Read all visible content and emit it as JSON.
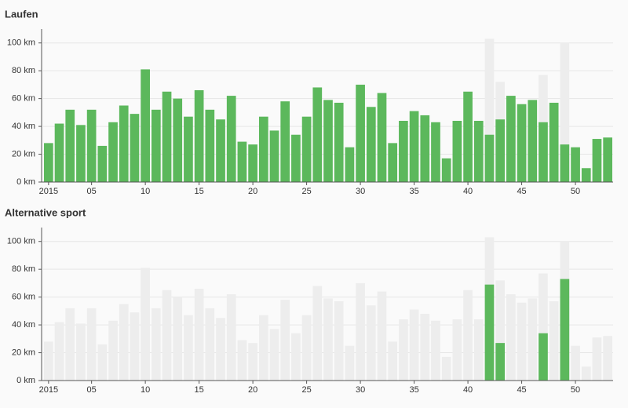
{
  "chart_data": [
    {
      "type": "bar",
      "title": "Laufen",
      "categories": [
        "2015",
        null,
        null,
        null,
        "05",
        null,
        null,
        null,
        null,
        "10",
        null,
        null,
        null,
        null,
        "15",
        null,
        null,
        null,
        null,
        "20",
        null,
        null,
        null,
        null,
        "25",
        null,
        null,
        null,
        null,
        "30",
        null,
        null,
        null,
        null,
        "35",
        null,
        null,
        null,
        null,
        "40",
        null,
        null,
        null,
        null,
        "45",
        null,
        null,
        null,
        null,
        "50",
        null,
        null,
        null
      ],
      "values": [
        28,
        42,
        52,
        41,
        52,
        26,
        43,
        55,
        49,
        81,
        52,
        65,
        60,
        47,
        66,
        52,
        45,
        62,
        29,
        27,
        47,
        37,
        58,
        34,
        47,
        68,
        59,
        57,
        25,
        70,
        54,
        64,
        28,
        44,
        51,
        48,
        43,
        17,
        44,
        65,
        44,
        34,
        45,
        62,
        56,
        59,
        43,
        57,
        27,
        25,
        10,
        31,
        32
      ],
      "color": "#5cb85c",
      "ylim": [
        0,
        110
      ],
      "yticks": [
        {
          "value": 0,
          "label": "0 km"
        },
        {
          "value": 20,
          "label": "20 km"
        },
        {
          "value": 40,
          "label": "40 km"
        },
        {
          "value": 60,
          "label": "60 km"
        },
        {
          "value": 80,
          "label": "80 km"
        },
        {
          "value": 100,
          "label": "100 km"
        }
      ],
      "grid": true
    },
    {
      "type": "bar",
      "title": "Alternative sport",
      "categories": [
        "2015",
        null,
        null,
        null,
        "05",
        null,
        null,
        null,
        null,
        "10",
        null,
        null,
        null,
        null,
        "15",
        null,
        null,
        null,
        null,
        "20",
        null,
        null,
        null,
        null,
        "25",
        null,
        null,
        null,
        null,
        "30",
        null,
        null,
        null,
        null,
        "35",
        null,
        null,
        null,
        null,
        "40",
        null,
        null,
        null,
        null,
        "45",
        null,
        null,
        null,
        null,
        "50",
        null,
        null,
        null
      ],
      "values": [
        0,
        0,
        0,
        0,
        0,
        0,
        0,
        0,
        0,
        0,
        0,
        0,
        0,
        0,
        0,
        0,
        0,
        0,
        0,
        0,
        0,
        0,
        0,
        0,
        0,
        0,
        0,
        0,
        0,
        0,
        0,
        0,
        0,
        0,
        0,
        0,
        0,
        0,
        0,
        0,
        0,
        69,
        27,
        0,
        0,
        0,
        34,
        0,
        73,
        0,
        0,
        0,
        0
      ],
      "color": "#5cb85c",
      "ylim": [
        0,
        110
      ],
      "yticks": [
        {
          "value": 0,
          "label": "0 km"
        },
        {
          "value": 20,
          "label": "20 km"
        },
        {
          "value": 40,
          "label": "40 km"
        },
        {
          "value": 60,
          "label": "60 km"
        },
        {
          "value": 80,
          "label": "80 km"
        },
        {
          "value": 100,
          "label": "100 km"
        }
      ],
      "grid": true
    }
  ]
}
